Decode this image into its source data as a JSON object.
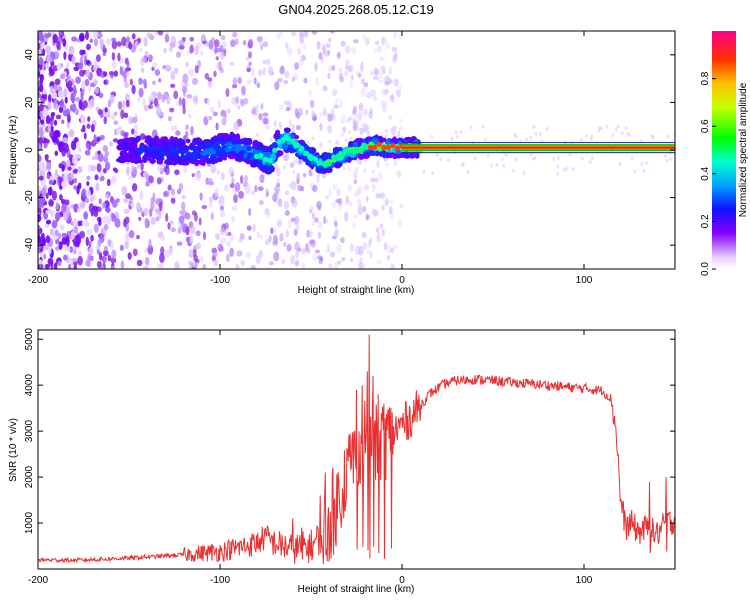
{
  "title": "GN04.2025.268.05.12.C19",
  "chart_data": [
    {
      "type": "heatmap",
      "name": "spectrogram",
      "xlabel": "Height of straight line (km)",
      "ylabel": "Frequency (Hz)",
      "xlim": [
        -200,
        150
      ],
      "ylim": [
        -50,
        50
      ],
      "xticks": [
        -200,
        -100,
        0,
        100
      ],
      "yticks": [
        -40,
        -20,
        0,
        20,
        40
      ],
      "colorbar": {
        "label": "Normalized spectral amplitude",
        "range": [
          0,
          1
        ],
        "ticks": [
          0.0,
          0.2,
          0.4,
          0.6,
          0.8
        ]
      },
      "signal_track": [
        [
          -150,
          0
        ],
        [
          -130,
          0
        ],
        [
          -115,
          -1
        ],
        [
          -105,
          0
        ],
        [
          -95,
          2
        ],
        [
          -85,
          0
        ],
        [
          -78,
          -3
        ],
        [
          -72,
          -5
        ],
        [
          -68,
          3
        ],
        [
          -62,
          5
        ],
        [
          -58,
          2
        ],
        [
          -52,
          -2
        ],
        [
          -48,
          -4
        ],
        [
          -44,
          -6
        ],
        [
          -40,
          -5
        ],
        [
          -35,
          -3
        ],
        [
          -30,
          -1
        ],
        [
          -25,
          0
        ],
        [
          -20,
          1
        ],
        [
          -15,
          2
        ],
        [
          -10,
          1
        ],
        [
          -5,
          1
        ],
        [
          0,
          1
        ],
        [
          10,
          1
        ],
        [
          150,
          1
        ]
      ],
      "noise_region_km": [
        -200,
        -60
      ]
    },
    {
      "type": "line",
      "name": "snr",
      "xlabel": "Height of straight line (km)",
      "ylabel": "SNR (10 * v/v)",
      "xlim": [
        -200,
        150
      ],
      "ylim": [
        0,
        5200
      ],
      "xticks": [
        -200,
        -100,
        0,
        100
      ],
      "yticks": [
        1000,
        2000,
        3000,
        4000,
        5000
      ],
      "series": [
        {
          "name": "SNR",
          "color": "#e83030",
          "points": [
            [
              -200,
              200
            ],
            [
              -180,
              190
            ],
            [
              -160,
              220
            ],
            [
              -140,
              260
            ],
            [
              -120,
              310
            ],
            [
              -100,
              380
            ],
            [
              -90,
              460
            ],
            [
              -80,
              560
            ],
            [
              -75,
              700
            ],
            [
              -70,
              560
            ],
            [
              -60,
              440
            ],
            [
              -50,
              500
            ],
            [
              -45,
              700
            ],
            [
              -40,
              1000
            ],
            [
              -35,
              1500
            ],
            [
              -30,
              2200
            ],
            [
              -25,
              2600
            ],
            [
              -20,
              2900
            ],
            [
              -15,
              2700
            ],
            [
              -10,
              2800
            ],
            [
              -5,
              2950
            ],
            [
              0,
              3150
            ],
            [
              5,
              3300
            ],
            [
              10,
              3550
            ],
            [
              15,
              3800
            ],
            [
              20,
              3950
            ],
            [
              25,
              4050
            ],
            [
              30,
              4100
            ],
            [
              40,
              4130
            ],
            [
              50,
              4100
            ],
            [
              60,
              4060
            ],
            [
              70,
              4030
            ],
            [
              80,
              4000
            ],
            [
              90,
              3960
            ],
            [
              100,
              3930
            ],
            [
              110,
              3880
            ],
            [
              115,
              3700
            ],
            [
              118,
              2900
            ],
            [
              120,
              1500
            ],
            [
              123,
              900
            ],
            [
              126,
              1000
            ],
            [
              130,
              800
            ],
            [
              135,
              900
            ],
            [
              140,
              750
            ],
            [
              145,
              1000
            ],
            [
              150,
              1050
            ]
          ],
          "spikes": [
            [
              -60,
              1100
            ],
            [
              -55,
              900
            ],
            [
              -45,
              1600
            ],
            [
              -42,
              2100
            ],
            [
              -38,
              2200
            ],
            [
              -25,
              3900
            ],
            [
              -22,
              4000
            ],
            [
              -19,
              4300
            ],
            [
              -18,
              5100
            ],
            [
              -16,
              4200
            ],
            [
              -13,
              3800
            ],
            [
              -10,
              3600
            ],
            [
              -6,
              3500
            ],
            [
              136,
              1900
            ],
            [
              145,
              2000
            ]
          ]
        }
      ]
    }
  ]
}
